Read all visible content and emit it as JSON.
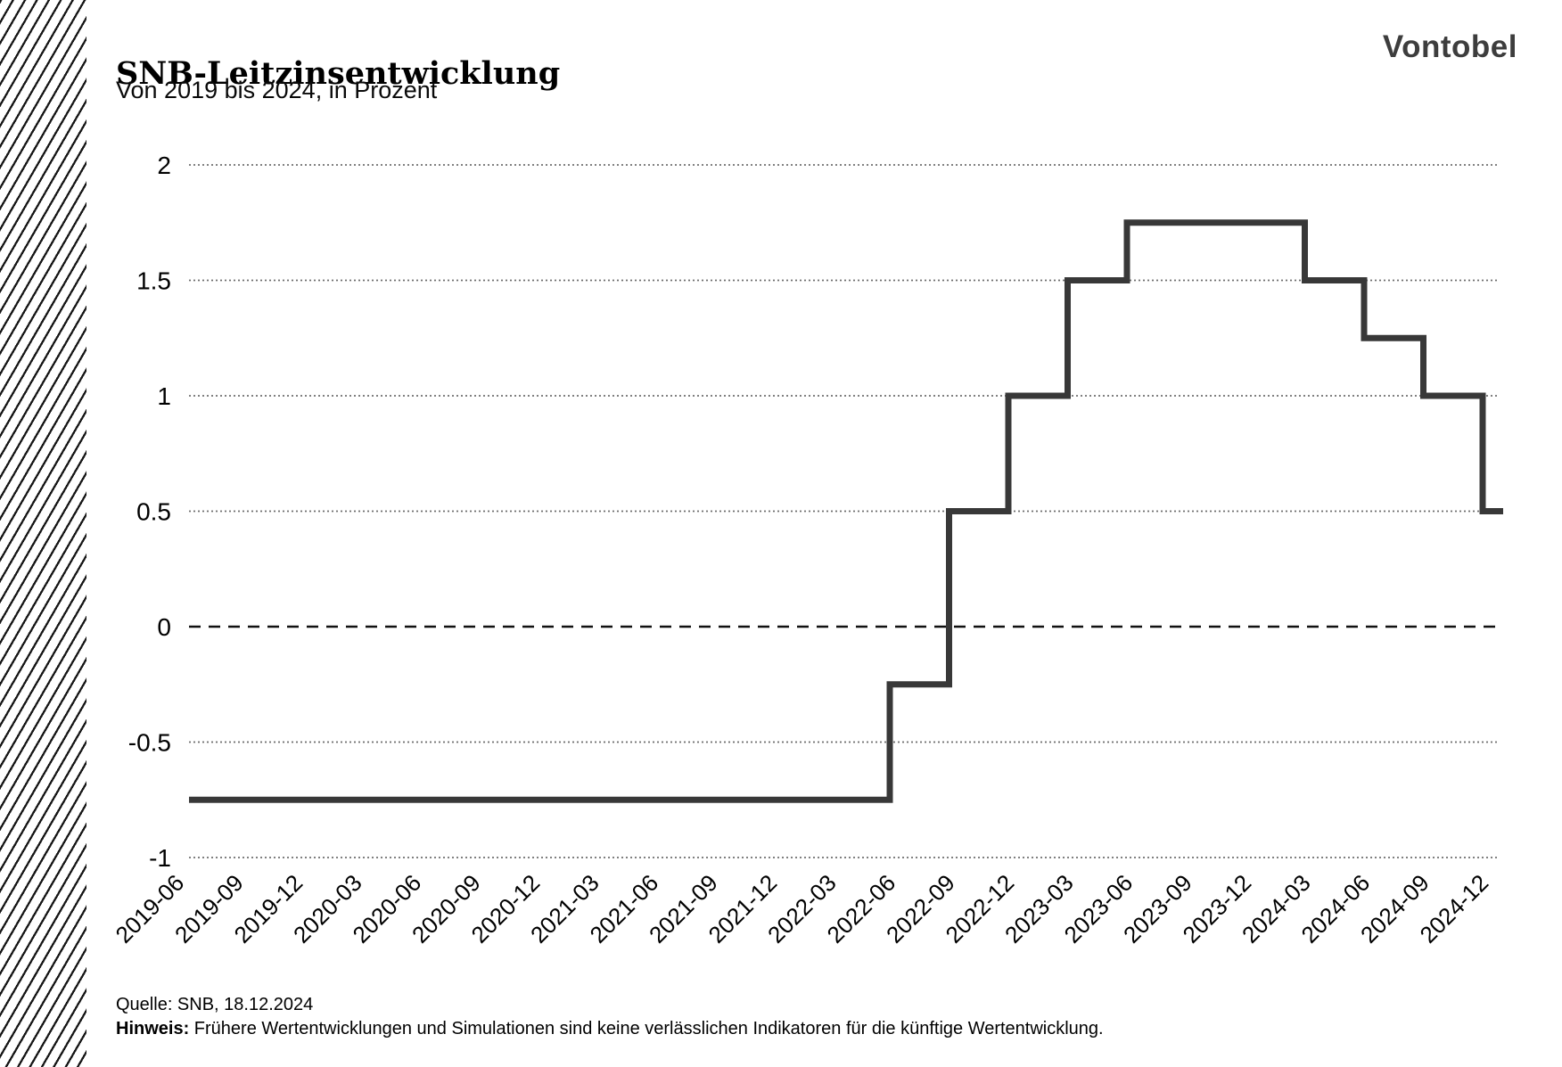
{
  "header": {
    "title": "SNB-Leitzinsentwicklung",
    "subtitle": "Von 2019 bis 2024, in Prozent",
    "logo": "Vontobel"
  },
  "footer": {
    "source": "Quelle: SNB, 18.12.2024",
    "note_label": "Hinweis:",
    "note_text": " Frühere Wertentwicklungen und Simulationen sind keine verlässlichen Indikatoren für die künftige Wertentwicklung."
  },
  "colors": {
    "line": "#383838",
    "grid": "#6e6e6e",
    "zero_line": "#111111",
    "text": "#000000",
    "logo": "#3d3d3d",
    "hatch": "#161616"
  },
  "chart_data": {
    "type": "line",
    "subtype": "step-post",
    "title": "SNB-Leitzinsentwicklung",
    "subtitle": "Von 2019 bis 2024, in Prozent",
    "x": [
      "2019-06",
      "2019-09",
      "2019-12",
      "2020-03",
      "2020-06",
      "2020-09",
      "2020-12",
      "2021-03",
      "2021-06",
      "2021-09",
      "2021-12",
      "2022-03",
      "2022-06",
      "2022-09",
      "2022-12",
      "2023-03",
      "2023-06",
      "2023-09",
      "2023-12",
      "2024-03",
      "2024-06",
      "2024-09",
      "2024-12"
    ],
    "values": [
      -0.75,
      -0.75,
      -0.75,
      -0.75,
      -0.75,
      -0.75,
      -0.75,
      -0.75,
      -0.75,
      -0.75,
      -0.75,
      -0.75,
      -0.25,
      0.5,
      1,
      1.5,
      1.75,
      1.75,
      1.75,
      1.5,
      1.25,
      1,
      0.5
    ],
    "yticks": [
      {
        "label": "2",
        "value": 2
      },
      {
        "label": "1.5",
        "value": 1.5
      },
      {
        "label": "1",
        "value": 1
      },
      {
        "label": "0.5",
        "value": 0.5
      },
      {
        "label": "0",
        "value": 0
      },
      {
        "label": "-0.5",
        "value": -0.5
      },
      {
        "label": "-1",
        "value": -1
      }
    ],
    "ylim": [
      -1,
      2
    ],
    "xlabel": "",
    "ylabel": "",
    "grid": "horizontal dotted; zero line dashed",
    "legend": "none"
  }
}
